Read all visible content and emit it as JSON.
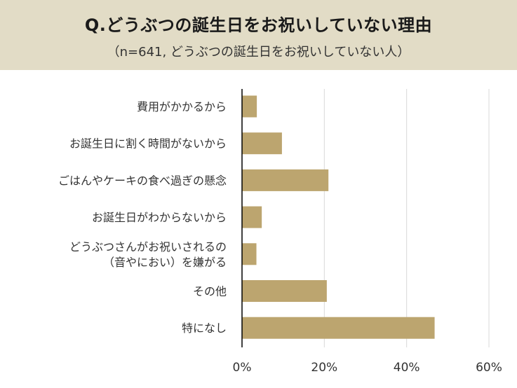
{
  "header": {
    "title": "Q.どうぶつの誕生日をお祝いしていない理由",
    "subtitle": "（n=641, どうぶつの誕生日をお祝いしていない人）"
  },
  "colors": {
    "header_bg": "#e2dcc6",
    "bar": "#bca56f",
    "grid": "#d9d9d9",
    "axis": "#000000"
  },
  "chart_data": {
    "type": "bar",
    "orientation": "horizontal",
    "categories": [
      [
        "費用がかかるから"
      ],
      [
        "お誕生日に割く時間がないから"
      ],
      [
        "ごはんやケーキの食べ過ぎの懸念"
      ],
      [
        "お誕生日がわからないから"
      ],
      [
        "どうぶつさんがお祝いされるの",
        "（音やにおい）を嫌がる"
      ],
      [
        "その他"
      ],
      [
        "特になし"
      ]
    ],
    "values": [
      3.6,
      9.7,
      21.0,
      4.8,
      3.5,
      20.6,
      46.8
    ],
    "unit": "%",
    "xlim": [
      0,
      60
    ],
    "xticks": [
      "0%",
      "20%",
      "40%",
      "60%"
    ],
    "grid": true
  }
}
